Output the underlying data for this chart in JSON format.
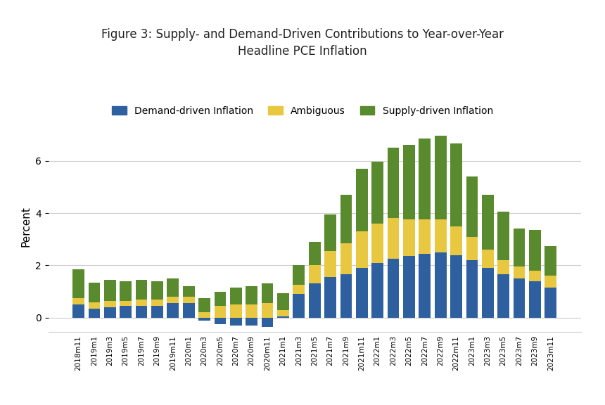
{
  "title": "Figure 3: Supply- and Demand-Driven Contributions to Year-over-Year\nHeadline PCE Inflation",
  "ylabel": "Percent",
  "legend_labels": [
    "Demand-driven Inflation",
    "Ambiguous",
    "Supply-driven Inflation"
  ],
  "colors": [
    "#2e5f9e",
    "#e8c840",
    "#5a8a2e"
  ],
  "background_color": "#ffffff",
  "categories": [
    "2018m11",
    "2019m1",
    "2019m3",
    "2019m5",
    "2019m7",
    "2019m9",
    "2019m11",
    "2020m1",
    "2020m3",
    "2020m5",
    "2020m7",
    "2020m9",
    "2020m11",
    "2021m1",
    "2021m3",
    "2021m5",
    "2021m7",
    "2021m9",
    "2021m11",
    "2022m1",
    "2022m3",
    "2022m5",
    "2022m7",
    "2022m9",
    "2022m11",
    "2023m1",
    "2023m3",
    "2023m5",
    "2023m7",
    "2023m9",
    "2023m11"
  ],
  "demand": [
    0.5,
    0.35,
    0.4,
    0.45,
    0.45,
    0.45,
    0.55,
    0.55,
    -0.1,
    -0.25,
    -0.3,
    -0.3,
    -0.35,
    0.05,
    0.9,
    1.3,
    1.55,
    1.65,
    1.9,
    2.1,
    2.25,
    2.35,
    2.45,
    2.5,
    2.4,
    2.2,
    1.9,
    1.65,
    1.5,
    1.4,
    1.15
  ],
  "ambiguous": [
    0.25,
    0.25,
    0.25,
    0.2,
    0.25,
    0.25,
    0.25,
    0.25,
    0.2,
    0.45,
    0.5,
    0.5,
    0.55,
    0.25,
    0.35,
    0.7,
    1.0,
    1.2,
    1.4,
    1.5,
    1.55,
    1.4,
    1.3,
    1.25,
    1.1,
    0.9,
    0.7,
    0.55,
    0.45,
    0.4,
    0.45
  ],
  "supply": [
    1.1,
    0.75,
    0.8,
    0.75,
    0.75,
    0.7,
    0.7,
    0.4,
    0.55,
    0.55,
    0.65,
    0.7,
    0.75,
    0.65,
    0.75,
    0.9,
    1.4,
    1.85,
    2.4,
    2.35,
    2.7,
    2.85,
    3.1,
    3.2,
    3.15,
    2.3,
    2.1,
    1.85,
    1.45,
    1.55,
    1.15
  ],
  "ylim": [
    -0.55,
    7.5
  ],
  "yticks": [
    0,
    2,
    4,
    6
  ]
}
